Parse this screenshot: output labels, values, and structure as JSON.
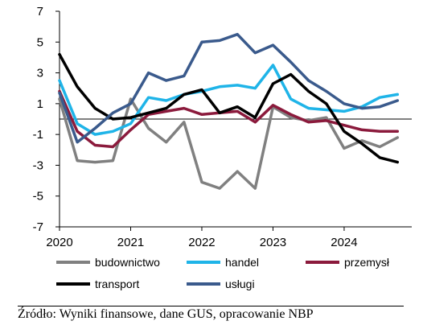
{
  "chart_data": {
    "type": "line",
    "title": "",
    "xlabel": "",
    "ylabel": "",
    "ylim": [
      -7,
      7
    ],
    "yticks": [
      7,
      5,
      3,
      1,
      -1,
      -3,
      -5,
      -7
    ],
    "xlim": [
      2020,
      2024.95
    ],
    "xticks": [
      2020,
      2021,
      2022,
      2023,
      2024
    ],
    "grid": false,
    "legend_placement": "bottom",
    "x": [
      2020.0,
      2020.25,
      2020.5,
      2020.75,
      2021.0,
      2021.25,
      2021.5,
      2021.75,
      2022.0,
      2022.25,
      2022.5,
      2022.75,
      2023.0,
      2023.25,
      2023.5,
      2023.75,
      2024.0,
      2024.25,
      2024.5,
      2024.75
    ],
    "series": [
      {
        "name": "budownictwo",
        "color": "#808080",
        "values": [
          1.3,
          -2.7,
          -2.8,
          -2.7,
          1.3,
          -0.6,
          -1.5,
          -0.2,
          -4.1,
          -4.5,
          -3.4,
          -4.5,
          0.8,
          0.1,
          -0.1,
          0.1,
          -1.9,
          -1.4,
          -1.8,
          -1.2
        ]
      },
      {
        "name": "handel",
        "color": "#1fb4e8",
        "values": [
          2.5,
          -0.3,
          -1.0,
          -0.8,
          -0.3,
          1.4,
          1.2,
          1.6,
          1.8,
          2.1,
          2.2,
          2.0,
          3.5,
          1.3,
          0.7,
          0.6,
          0.5,
          0.8,
          1.4,
          1.6
        ]
      },
      {
        "name": "przemysł",
        "color": "#8b1a3c",
        "values": [
          1.8,
          -0.8,
          -1.7,
          -1.8,
          -0.7,
          0.3,
          0.5,
          0.7,
          0.3,
          0.4,
          0.5,
          -0.2,
          0.9,
          0.3,
          -0.2,
          -0.1,
          -0.4,
          -0.7,
          -0.8,
          -0.8
        ]
      },
      {
        "name": "transport",
        "color": "#000000",
        "values": [
          4.2,
          2.1,
          0.7,
          0.0,
          0.1,
          0.4,
          0.7,
          1.6,
          1.9,
          0.4,
          0.8,
          0.1,
          2.3,
          2.9,
          1.8,
          1.0,
          -0.8,
          -1.6,
          -2.5,
          -2.8
        ]
      },
      {
        "name": "usługi",
        "color": "#3a5a8c",
        "values": [
          1.7,
          -1.5,
          -0.6,
          0.4,
          1.0,
          3.0,
          2.5,
          2.8,
          5.0,
          5.1,
          5.5,
          4.3,
          4.8,
          3.7,
          2.5,
          1.8,
          1.0,
          0.7,
          0.8,
          1.2
        ]
      }
    ]
  },
  "source_text": "Źródło: Wyniki finansowe, dane GUS, opracowanie NBP"
}
